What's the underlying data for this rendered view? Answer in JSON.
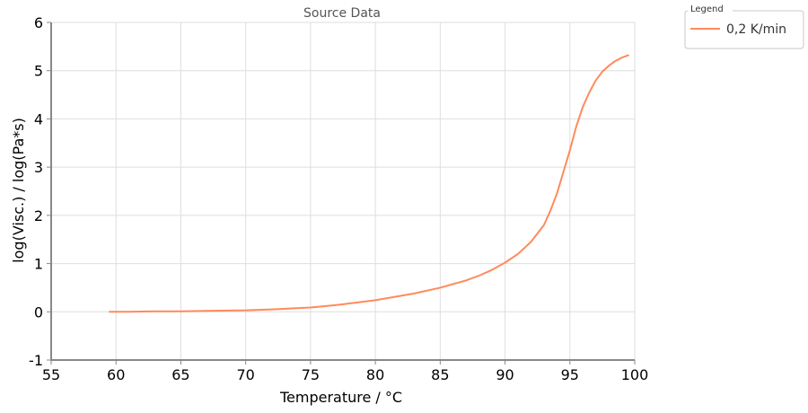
{
  "chart_data": {
    "type": "line",
    "title": "Source Data",
    "xlabel": "Temperature / °C",
    "ylabel": "log(Visc.) / log(Pa*s)",
    "xlim": [
      55,
      100
    ],
    "ylim": [
      -1,
      6
    ],
    "xticks": [
      55,
      60,
      65,
      70,
      75,
      80,
      85,
      90,
      95,
      100
    ],
    "yticks": [
      -1,
      0,
      1,
      2,
      3,
      4,
      5,
      6
    ],
    "grid": true,
    "legend": {
      "title": "Legend",
      "position": "top-right-outside"
    },
    "series": [
      {
        "name": "0,2 K/min",
        "color": "#ff8a5c",
        "x": [
          59.5,
          61,
          63,
          65,
          67,
          70,
          72,
          75,
          77,
          80,
          83,
          85,
          87,
          88,
          89,
          90,
          91,
          92,
          93,
          93.5,
          94,
          94.5,
          95,
          95.5,
          96,
          96.5,
          97,
          97.5,
          98,
          98.5,
          99,
          99.5
        ],
        "values": [
          0.0,
          0.0,
          0.01,
          0.01,
          0.02,
          0.03,
          0.05,
          0.09,
          0.14,
          0.24,
          0.38,
          0.5,
          0.65,
          0.75,
          0.87,
          1.02,
          1.2,
          1.45,
          1.8,
          2.1,
          2.45,
          2.9,
          3.35,
          3.85,
          4.25,
          4.55,
          4.8,
          4.98,
          5.1,
          5.2,
          5.27,
          5.32
        ]
      }
    ]
  }
}
